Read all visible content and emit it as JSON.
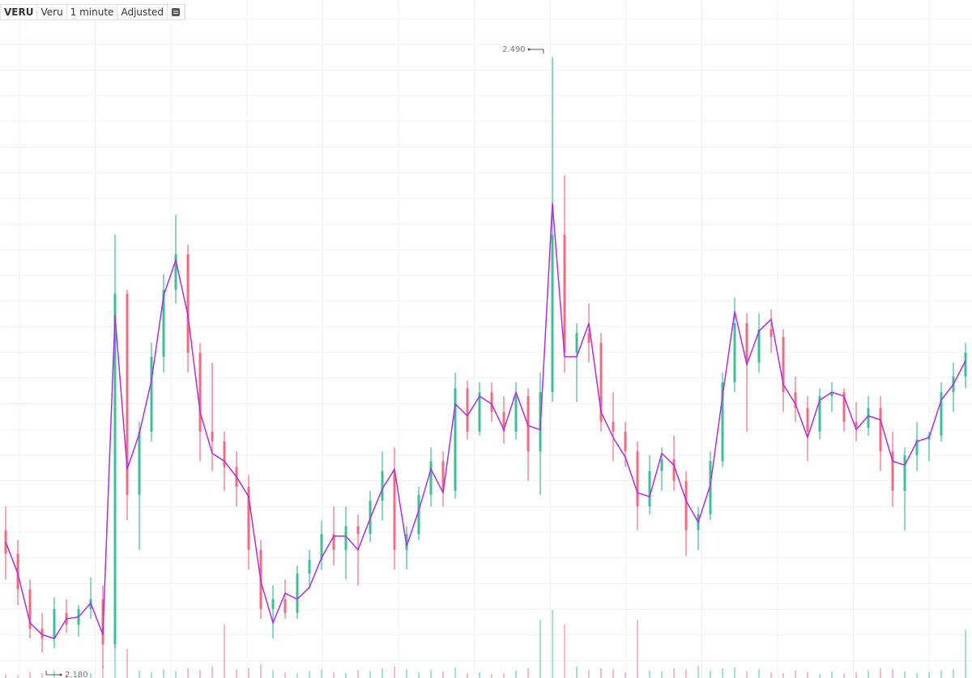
{
  "toolbar": {
    "symbol": "VERU",
    "name": "Veru",
    "interval": "1 minute",
    "adjustment": "Adjusted"
  },
  "chart_data": {
    "type": "candlestick",
    "open": [
      2.25,
      2.238,
      2.22,
      2.2,
      2.195,
      2.208,
      2.202,
      2.21,
      2.215,
      2.192,
      2.37,
      2.268,
      2.3,
      2.338,
      2.372,
      2.39,
      2.34,
      2.3,
      2.295,
      2.282,
      2.272,
      2.24,
      2.21,
      2.215,
      2.208,
      2.228,
      2.235,
      2.248,
      2.24,
      2.252,
      2.248,
      2.265,
      2.28,
      2.24,
      2.248,
      2.268,
      2.285,
      2.27,
      2.322,
      2.3,
      2.32,
      2.31,
      2.3,
      2.318,
      2.29,
      2.32,
      2.4,
      2.34,
      2.35,
      2.345,
      2.305,
      2.3,
      2.29,
      2.262,
      2.28,
      2.286,
      2.275,
      2.25,
      2.258,
      2.285,
      2.325,
      2.355,
      2.335,
      2.352,
      2.348,
      2.32,
      2.312,
      2.3,
      2.318,
      2.32,
      2.305,
      2.302,
      2.312,
      2.29,
      2.27,
      2.288,
      2.296,
      2.298,
      2.32,
      2.328
    ],
    "high": [
      2.262,
      2.245,
      2.225,
      2.208,
      2.216,
      2.215,
      2.212,
      2.226,
      2.222,
      2.4,
      2.372,
      2.305,
      2.345,
      2.38,
      2.41,
      2.395,
      2.345,
      2.335,
      2.3,
      2.29,
      2.278,
      2.245,
      2.222,
      2.225,
      2.232,
      2.24,
      2.255,
      2.262,
      2.262,
      2.258,
      2.27,
      2.29,
      2.292,
      2.252,
      2.272,
      2.292,
      2.29,
      2.33,
      2.326,
      2.325,
      2.325,
      2.318,
      2.325,
      2.322,
      2.33,
      2.49,
      2.43,
      2.355,
      2.365,
      2.35,
      2.32,
      2.305,
      2.295,
      2.288,
      2.292,
      2.298,
      2.28,
      2.262,
      2.29,
      2.33,
      2.368,
      2.36,
      2.36,
      2.362,
      2.352,
      2.328,
      2.318,
      2.322,
      2.325,
      2.322,
      2.315,
      2.318,
      2.318,
      2.3,
      2.292,
      2.305,
      2.3,
      2.325,
      2.335,
      2.345
    ],
    "low": [
      2.225,
      2.212,
      2.195,
      2.188,
      2.19,
      2.198,
      2.196,
      2.205,
      2.18,
      2.19,
      2.255,
      2.24,
      2.295,
      2.33,
      2.365,
      2.33,
      2.285,
      2.28,
      2.27,
      2.262,
      2.23,
      2.205,
      2.195,
      2.205,
      2.205,
      2.22,
      2.23,
      2.232,
      2.225,
      2.222,
      2.244,
      2.255,
      2.23,
      2.23,
      2.245,
      2.262,
      2.262,
      2.266,
      2.296,
      2.298,
      2.305,
      2.294,
      2.296,
      2.275,
      2.268,
      2.315,
      2.33,
      2.315,
      2.335,
      2.3,
      2.285,
      2.282,
      2.25,
      2.258,
      2.27,
      2.27,
      2.237,
      2.24,
      2.255,
      2.282,
      2.32,
      2.3,
      2.33,
      2.34,
      2.31,
      2.305,
      2.285,
      2.296,
      2.31,
      2.3,
      2.295,
      2.298,
      2.28,
      2.262,
      2.25,
      2.28,
      2.285,
      2.295,
      2.31,
      2.322
    ],
    "close": [
      2.238,
      2.22,
      2.2,
      2.195,
      2.21,
      2.202,
      2.21,
      2.215,
      2.192,
      2.37,
      2.268,
      2.3,
      2.338,
      2.372,
      2.39,
      2.34,
      2.3,
      2.295,
      2.282,
      2.272,
      2.24,
      2.21,
      2.215,
      2.208,
      2.228,
      2.235,
      2.248,
      2.24,
      2.252,
      2.248,
      2.265,
      2.28,
      2.24,
      2.248,
      2.268,
      2.285,
      2.27,
      2.322,
      2.3,
      2.32,
      2.31,
      2.3,
      2.318,
      2.29,
      2.32,
      2.4,
      2.34,
      2.35,
      2.345,
      2.305,
      2.3,
      2.29,
      2.262,
      2.28,
      2.286,
      2.275,
      2.25,
      2.258,
      2.285,
      2.325,
      2.355,
      2.335,
      2.352,
      2.348,
      2.32,
      2.312,
      2.3,
      2.318,
      2.32,
      2.305,
      2.302,
      2.312,
      2.29,
      2.27,
      2.288,
      2.296,
      2.298,
      2.32,
      2.328,
      2.34
    ],
    "ma": {
      "color": "#b12ee0",
      "values": [
        2.244,
        2.228,
        2.203,
        2.197,
        2.195,
        2.205,
        2.206,
        2.213,
        2.197,
        2.359,
        2.281,
        2.299,
        2.326,
        2.369,
        2.387,
        2.359,
        2.31,
        2.289,
        2.285,
        2.277,
        2.267,
        2.224,
        2.203,
        2.218,
        2.215,
        2.221,
        2.236,
        2.247,
        2.247,
        2.24,
        2.256,
        2.271,
        2.281,
        2.242,
        2.26,
        2.281,
        2.269,
        2.314,
        2.308,
        2.318,
        2.314,
        2.301,
        2.32,
        2.303,
        2.301,
        2.416,
        2.338,
        2.338,
        2.355,
        2.31,
        2.297,
        2.287,
        2.269,
        2.267,
        2.289,
        2.283,
        2.265,
        2.254,
        2.273,
        2.318,
        2.361,
        2.334,
        2.351,
        2.357,
        2.324,
        2.314,
        2.297,
        2.316,
        2.32,
        2.318,
        2.301,
        2.308,
        2.306,
        2.285,
        2.283,
        2.295,
        2.297,
        2.316,
        2.324,
        2.336
      ]
    },
    "volume": {
      "values": [
        4,
        3,
        6,
        5,
        8,
        4,
        3,
        5,
        12,
        60,
        30,
        8,
        6,
        9,
        7,
        10,
        8,
        12,
        55,
        9,
        10,
        14,
        8,
        6,
        5,
        7,
        9,
        6,
        5,
        8,
        7,
        10,
        12,
        9,
        6,
        8,
        7,
        11,
        5,
        6,
        4,
        5,
        8,
        10,
        60,
        70,
        55,
        12,
        8,
        10,
        9,
        6,
        60,
        8,
        7,
        10,
        9,
        12,
        8,
        10,
        11,
        7,
        9,
        6,
        5,
        8,
        6,
        4,
        7,
        5,
        6,
        8,
        10,
        9,
        7,
        5,
        6,
        8,
        9,
        50
      ]
    },
    "up_color": "#3dbf98",
    "down_color": "#f26b83",
    "ylim": [
      2.175,
      2.519
    ],
    "volume_ylim": [
      0,
      100
    ],
    "annotations": [
      "2.490",
      "2.180"
    ]
  }
}
